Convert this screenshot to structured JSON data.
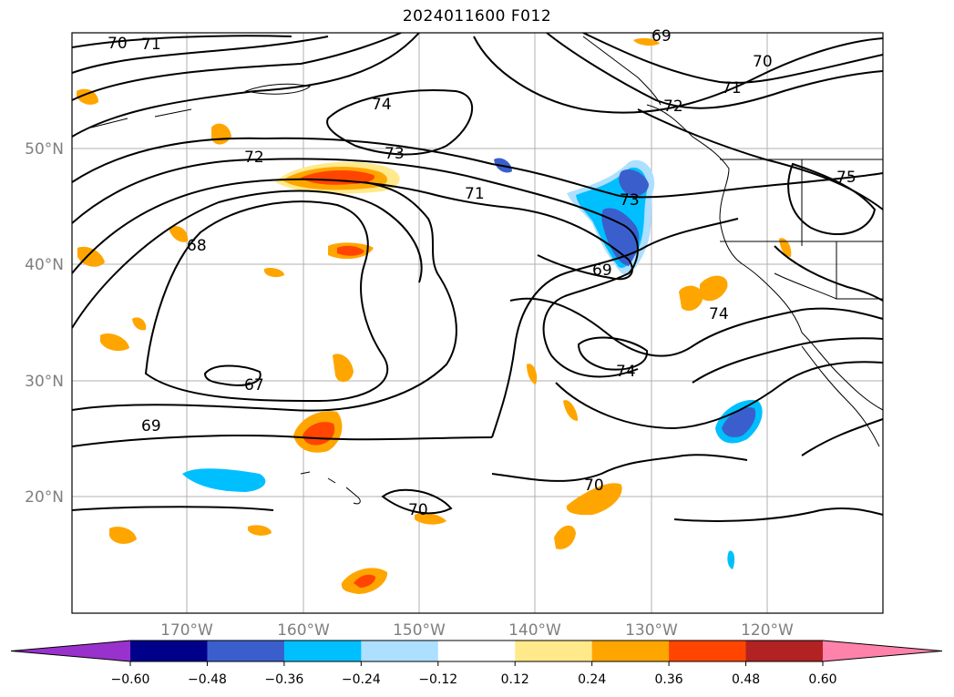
{
  "title": "2024011600 F012",
  "map": {
    "latitude_labels": [
      "50°N",
      "40°N",
      "30°N",
      "20°N"
    ],
    "longitude_labels": [
      "170°W",
      "160°W",
      "150°W",
      "140°W",
      "130°W",
      "120°W"
    ],
    "contour_labels": [
      "70",
      "71",
      "74",
      "72",
      "73",
      "71",
      "68",
      "67",
      "69",
      "70",
      "69",
      "73",
      "74",
      "74",
      "75",
      "70",
      "71",
      "72",
      "70",
      "69"
    ],
    "layers": {
      "contours": "height contours (black lines)",
      "filled": "shaded anomaly field",
      "coastlines": true,
      "gridlines": true
    }
  },
  "colorbar": {
    "ticks": [
      "−0.60",
      "−0.48",
      "−0.36",
      "−0.24",
      "−0.12",
      "0.12",
      "0.24",
      "0.36",
      "0.48",
      "0.60"
    ],
    "colors": [
      "#9932cc",
      "#00008b",
      "#3a5fcd",
      "#00bfff",
      "#addfff",
      "#ffffff",
      "#ffe98a",
      "#ffa500",
      "#ff4500",
      "#b22222",
      "#ff82ab"
    ],
    "extend": "both"
  }
}
